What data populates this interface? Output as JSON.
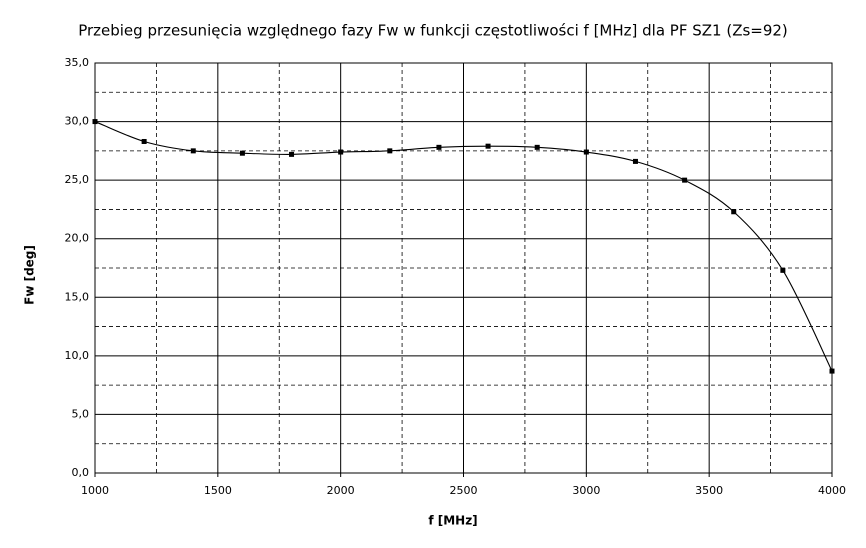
{
  "chart_data": {
    "type": "line",
    "title": "Przebieg przesunięcia względnego fazy Fw w funkcji częstotliwości f [MHz] dla PF SZ1 (Zs=92)",
    "xlabel": "f [MHz]",
    "ylabel": "Fw [deg]",
    "x": [
      1000,
      1200,
      1400,
      1600,
      1800,
      2000,
      2200,
      2400,
      2600,
      2800,
      3000,
      3200,
      3400,
      3600,
      3800,
      4000
    ],
    "series": [
      {
        "name": "Fw",
        "color": "#000000",
        "values": [
          30.0,
          28.3,
          27.5,
          27.3,
          27.2,
          27.4,
          27.5,
          27.8,
          27.9,
          27.8,
          27.4,
          26.6,
          25.0,
          22.3,
          17.3,
          8.7
        ]
      }
    ],
    "xlim": [
      1000,
      4000
    ],
    "xticks": [
      1000,
      1500,
      2000,
      2500,
      3000,
      3500,
      4000
    ],
    "ylim": [
      0,
      35
    ],
    "yticks": [
      {
        "value": 0,
        "label": "0,0"
      },
      {
        "value": 5,
        "label": "5,0"
      },
      {
        "value": 10,
        "label": "10,0"
      },
      {
        "value": 15,
        "label": "15,0"
      },
      {
        "value": 20,
        "label": "20,0"
      },
      {
        "value": 25,
        "label": "25,0"
      },
      {
        "value": 30,
        "label": "30,0"
      },
      {
        "value": 35,
        "label": "35,0"
      }
    ],
    "minor_xticks": [
      1250,
      1750,
      2250,
      2750,
      3250,
      3750
    ],
    "minor_yticks": [
      2.5,
      7.5,
      12.5,
      17.5,
      22.5,
      27.5,
      32.5
    ],
    "grid": true,
    "smooth": true
  }
}
